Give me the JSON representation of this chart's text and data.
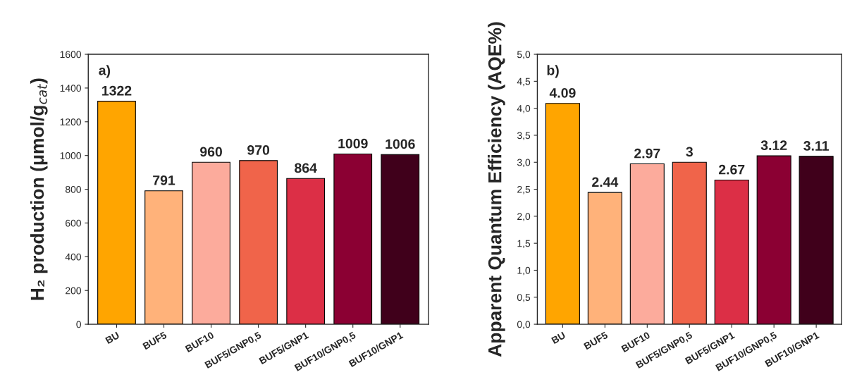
{
  "chart_data": [
    {
      "type": "bar",
      "ylabel": "H₂ production (μmol/g$_{cat}$)",
      "annotations": [
        "a)"
      ],
      "categories": [
        "BU",
        "BUF5",
        "BUF10",
        "BUF5/GNP0,5",
        "BUF5/GNP1",
        "BUF10/GNP0,5",
        "BUF10/GNP1"
      ],
      "values": [
        1322,
        791,
        960,
        970,
        864,
        1009,
        1006
      ],
      "colors": [
        "#ffa500",
        "#ffb27a",
        "#fcab9c",
        "#f0644a",
        "#dc2f46",
        "#8b0033",
        "#40001b"
      ],
      "ylim": [
        0,
        1600
      ],
      "yticks": [
        0,
        200,
        400,
        600,
        800,
        1000,
        1200,
        1400,
        1600
      ],
      "data_labels": true,
      "grid": false,
      "legend": false
    },
    {
      "type": "bar",
      "ylabel": "Apparent Quantum Efficiency (AQE%)",
      "annotations": [
        "b)"
      ],
      "categories": [
        "BU",
        "BUF5",
        "BUF10",
        "BUF5/GNP0,5",
        "BUF5/GNP1",
        "BUF10/GNP0,5",
        "BUF10/GNP1"
      ],
      "values": [
        4.09,
        2.44,
        2.97,
        3,
        2.67,
        3.12,
        3.11
      ],
      "colors": [
        "#ffa500",
        "#ffb27a",
        "#fcab9c",
        "#f0644a",
        "#dc2f46",
        "#8b0033",
        "#40001b"
      ],
      "ylim": [
        0,
        5
      ],
      "yticks": [
        {
          "value": 0,
          "label": "0,0"
        },
        {
          "value": 0.5,
          "label": "0,5"
        },
        {
          "value": 1,
          "label": "1,0"
        },
        {
          "value": 1.5,
          "label": "1,5"
        },
        {
          "value": 2,
          "label": "2,0"
        },
        {
          "value": 2.5,
          "label": "2,5"
        },
        {
          "value": 3,
          "label": "3,0"
        },
        {
          "value": 3.5,
          "label": "3,5"
        },
        {
          "value": 4,
          "label": "4,0"
        },
        {
          "value": 4.5,
          "label": "4,5"
        },
        {
          "value": 5,
          "label": "5,0"
        }
      ],
      "data_labels": true,
      "grid": false,
      "legend": false
    }
  ]
}
